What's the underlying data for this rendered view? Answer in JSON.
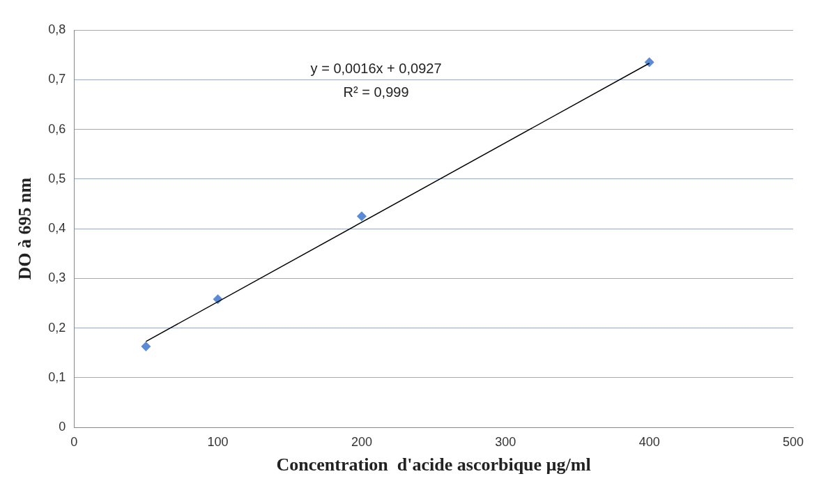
{
  "chart_data": {
    "type": "scatter",
    "xlabel": "Concentration  d'acide ascorbique µg/ml",
    "ylabel": "DO à 695 nm",
    "series": [
      {
        "type": "scatter",
        "color": "#5b8bd6",
        "marker": "diamond",
        "x": [
          50,
          100,
          200,
          400
        ],
        "values": [
          0.163,
          0.258,
          0.425,
          0.735
        ]
      },
      {
        "type": "line",
        "color": "#000000",
        "marker": "none",
        "x": [
          50,
          400
        ],
        "values": [
          0.173,
          0.733
        ]
      }
    ],
    "xlim": [
      0,
      500
    ],
    "xticks": [
      0,
      100,
      200,
      300,
      400,
      500
    ],
    "ylim": [
      0,
      0.8
    ],
    "yticks": [
      0,
      {
        "value": 0.1,
        "label": "0,1"
      },
      {
        "value": 0.2,
        "label": "0,2"
      },
      {
        "value": 0.3,
        "label": "0,3"
      },
      {
        "value": 0.4,
        "label": "0,4"
      },
      {
        "value": 0.5,
        "label": "0,5"
      },
      {
        "value": 0.6,
        "label": "0,6"
      },
      {
        "value": 0.7,
        "label": "0,7"
      },
      {
        "value": 0.8,
        "label": "0,8"
      }
    ],
    "grid": "y",
    "legend": false,
    "annotations": [
      "y = 0,0016x + 0,0927",
      "R² = 0,999"
    ]
  }
}
